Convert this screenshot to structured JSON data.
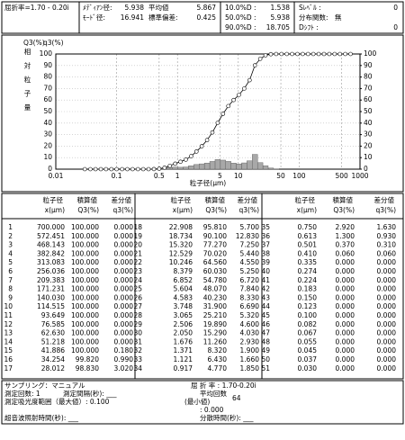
{
  "header": {
    "refractive_index": "屈折率=1.70 - 0.20i",
    "stats": [
      {
        "label": "ﾒﾃﾞｨｱﾝ径:",
        "value": "5.938"
      },
      {
        "label": "ﾓｰﾄﾞ径:",
        "value": "16.941"
      },
      {
        "label": "平均値",
        "value": "5.867"
      },
      {
        "label": "標準偏差:",
        "value": "0.425"
      },
      {
        "label": "10.0%D :",
        "value": "1.538"
      },
      {
        "label": "50.0%D :",
        "value": "5.938"
      },
      {
        "label": "90.0%D :",
        "value": "18.705"
      },
      {
        "label": "Sﾚﾍﾞﾙ :",
        "value": "0"
      },
      {
        "label": "分布関数:",
        "value": "無"
      },
      {
        "label": "Dｼﾌﾄ :",
        "value": "0"
      }
    ]
  },
  "chart_data": {
    "type": "line",
    "ylabel_left": "Q3(%)",
    "ylabel_right": "q3(%)",
    "ylabel": "相対粒子量",
    "xlabel": "粒子径(μm)",
    "log_x": true,
    "grid": true,
    "x": [
      700,
      572.451,
      468.143,
      382.842,
      313.083,
      256.036,
      209.383,
      171.231,
      140.03,
      114.515,
      93.649,
      76.585,
      62.63,
      51.218,
      41.886,
      34.254,
      28.012,
      22.908,
      18.734,
      15.32,
      12.529,
      10.246,
      8.379,
      6.852,
      5.604,
      4.583,
      3.748,
      3.065,
      2.506,
      2.05,
      1.676,
      1.371,
      1.121,
      0.917,
      0.75,
      0.613,
      0.501,
      0.41,
      0.335,
      0.274,
      0.224,
      0.183,
      0.15,
      0.123,
      0.1,
      0.082,
      0.067,
      0.055,
      0.045,
      0.037,
      0.03
    ],
    "series": [
      {
        "color": "#000000",
        "values": [
          100,
          100,
          100,
          100,
          100,
          100,
          100,
          100,
          100,
          100,
          100,
          100,
          100,
          100,
          100,
          99.82,
          98.83,
          95.81,
          90.1,
          77.27,
          70.02,
          64.56,
          60.03,
          54.78,
          48.07,
          40.23,
          31.9,
          25.21,
          19.89,
          15.29,
          11.26,
          8.32,
          6.43,
          4.77,
          2.92,
          1.3,
          0.37,
          0.06,
          0,
          0,
          0,
          0,
          0,
          0,
          0,
          0,
          0,
          0,
          0,
          0,
          0
        ]
      },
      {
        "type": "bar",
        "axis": "y2",
        "color": "#a8a8a8",
        "values": [
          0,
          0,
          0,
          0,
          0,
          0,
          0,
          0,
          0,
          0,
          0,
          0,
          0,
          0,
          0.18,
          0.99,
          3.02,
          5.7,
          12.83,
          7.25,
          5.44,
          4.55,
          5.25,
          6.72,
          7.84,
          8.33,
          6.69,
          5.32,
          4.6,
          4.03,
          2.93,
          1.9,
          1.66,
          1.85,
          1.63,
          0.93,
          0.31,
          0.06,
          0,
          0,
          0,
          0,
          0,
          0,
          0,
          0,
          0,
          0,
          0,
          0,
          0
        ]
      }
    ],
    "xlim": [
      0.01,
      1000
    ],
    "xticks": [
      0.01,
      0.1,
      0.5,
      1,
      5,
      10,
      50,
      100,
      500,
      1000
    ],
    "ylim": [
      0,
      100
    ],
    "yticks": [
      0,
      10,
      20,
      30,
      40,
      50,
      60,
      70,
      80,
      90,
      100
    ],
    "y2lim": [
      0,
      100
    ],
    "y2ticks": [
      0,
      10,
      20,
      30,
      40,
      50,
      60,
      70,
      80,
      90,
      100
    ]
  },
  "table": {
    "columns": [
      "粒子径",
      "積算値",
      "差分値"
    ],
    "units": [
      "x(μm)",
      "Q3(%)",
      "q3(%)"
    ],
    "rows": [
      [
        "1",
        "700.000",
        "100.000",
        "0.000"
      ],
      [
        "2",
        "572.451",
        "100.000",
        "0.000"
      ],
      [
        "3",
        "468.143",
        "100.000",
        "0.000"
      ],
      [
        "4",
        "382.842",
        "100.000",
        "0.000"
      ],
      [
        "5",
        "313.083",
        "100.000",
        "0.000"
      ],
      [
        "6",
        "256.036",
        "100.000",
        "0.000"
      ],
      [
        "7",
        "209.383",
        "100.000",
        "0.000"
      ],
      [
        "8",
        "171.231",
        "100.000",
        "0.000"
      ],
      [
        "9",
        "140.030",
        "100.000",
        "0.000"
      ],
      [
        "10",
        "114.515",
        "100.000",
        "0.000"
      ],
      [
        "11",
        "93.649",
        "100.000",
        "0.000"
      ],
      [
        "12",
        "76.585",
        "100.000",
        "0.000"
      ],
      [
        "13",
        "62.630",
        "100.000",
        "0.000"
      ],
      [
        "14",
        "51.218",
        "100.000",
        "0.000"
      ],
      [
        "15",
        "41.886",
        "100.000",
        "0.180"
      ],
      [
        "16",
        "34.254",
        "99.820",
        "0.990"
      ],
      [
        "17",
        "28.012",
        "98.830",
        "3.020"
      ],
      [
        "18",
        "22.908",
        "95.810",
        "5.700"
      ],
      [
        "19",
        "18.734",
        "90.100",
        "12.830"
      ],
      [
        "20",
        "15.320",
        "77.270",
        "7.250"
      ],
      [
        "21",
        "12.529",
        "70.020",
        "5.440"
      ],
      [
        "22",
        "10.246",
        "64.560",
        "4.550"
      ],
      [
        "23",
        "8.379",
        "60.030",
        "5.250"
      ],
      [
        "24",
        "6.852",
        "54.780",
        "6.720"
      ],
      [
        "25",
        "5.604",
        "48.070",
        "7.840"
      ],
      [
        "26",
        "4.583",
        "40.230",
        "8.330"
      ],
      [
        "27",
        "3.748",
        "31.900",
        "6.690"
      ],
      [
        "28",
        "3.065",
        "25.210",
        "5.320"
      ],
      [
        "29",
        "2.506",
        "19.890",
        "4.600"
      ],
      [
        "30",
        "2.050",
        "15.290",
        "4.030"
      ],
      [
        "31",
        "1.676",
        "11.260",
        "2.930"
      ],
      [
        "32",
        "1.371",
        "8.320",
        "1.900"
      ],
      [
        "33",
        "1.121",
        "6.430",
        "1.660"
      ],
      [
        "34",
        "0.917",
        "4.770",
        "1.850"
      ],
      [
        "35",
        "0.750",
        "2.920",
        "1.630"
      ],
      [
        "36",
        "0.613",
        "1.300",
        "0.930"
      ],
      [
        "37",
        "0.501",
        "0.370",
        "0.310"
      ],
      [
        "38",
        "0.410",
        "0.060",
        "0.060"
      ],
      [
        "39",
        "0.335",
        "0.000",
        "0.000"
      ],
      [
        "40",
        "0.274",
        "0.000",
        "0.000"
      ],
      [
        "41",
        "0.224",
        "0.000",
        "0.000"
      ],
      [
        "42",
        "0.183",
        "0.000",
        "0.000"
      ],
      [
        "43",
        "0.150",
        "0.000",
        "0.000"
      ],
      [
        "44",
        "0.123",
        "0.000",
        "0.000"
      ],
      [
        "45",
        "0.100",
        "0.000",
        "0.000"
      ],
      [
        "46",
        "0.082",
        "0.000",
        "0.000"
      ],
      [
        "47",
        "0.067",
        "0.000",
        "0.000"
      ],
      [
        "48",
        "0.055",
        "0.000",
        "0.000"
      ],
      [
        "49",
        "0.045",
        "0.000",
        "0.000"
      ],
      [
        "50",
        "0.037",
        "0.000",
        "0.000"
      ],
      [
        "51",
        "0.030",
        "0.000",
        "0.000"
      ]
    ]
  },
  "footer": {
    "items": [
      "サンプリング：マニュアル",
      "屈 折 率 : 1.70-0.20i",
      "測定回数:  1",
      "測定間隔(秒): ___",
      "平均回数",
      "64",
      "測定吸光度範囲（最大値）: 0.100",
      "(最小値)",
      ": 0.000",
      "超音波照射時間(秒): ___",
      "分散時間(秒): ___"
    ]
  }
}
